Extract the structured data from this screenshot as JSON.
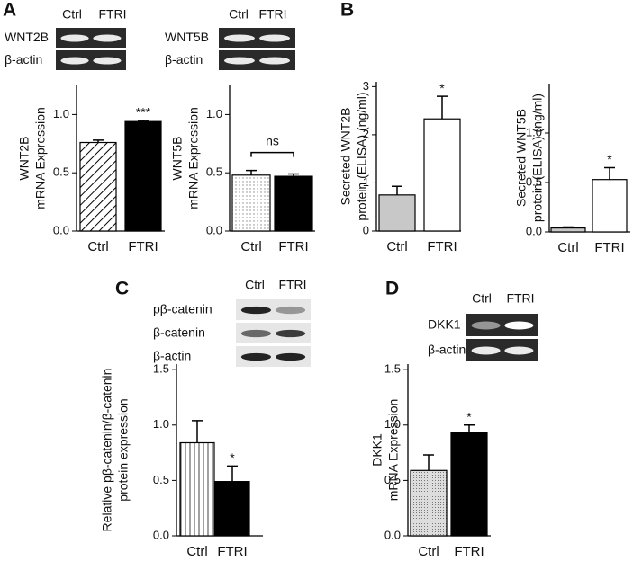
{
  "panels": [
    "A",
    "B",
    "C",
    "D"
  ],
  "blots": [
    {
      "columns": [
        "Ctrl",
        "FTRI"
      ],
      "rows": [
        "WNT2B",
        "β-actin"
      ]
    },
    {
      "columns": [
        "Ctrl",
        "FTRI"
      ],
      "rows": [
        "WNT5B",
        "β-actin"
      ]
    },
    {
      "columns": [
        "Ctrl",
        "FTRI"
      ],
      "rows": [
        "pβ-catenin",
        "β-catenin",
        "β-actin"
      ]
    },
    {
      "columns": [
        "Ctrl",
        "FTRI"
      ],
      "rows": [
        "DKK1",
        "β-actin"
      ]
    }
  ],
  "chart_data": [
    {
      "type": "bar",
      "ylabel": [
        "WNT2B",
        "mRNA Expression"
      ],
      "categories": [
        "Ctrl",
        "FTRI"
      ],
      "values": [
        0.76,
        0.94
      ],
      "errors": [
        0.02,
        0.01
      ],
      "fills": [
        "hatch",
        "#000000"
      ],
      "ylim": [
        0,
        1.25
      ],
      "yticks": [
        {
          "value": 0,
          "label": "0.0"
        },
        {
          "value": 0.5,
          "label": "0.5"
        },
        {
          "value": 1,
          "label": "1.0"
        }
      ],
      "annotations": [
        {
          "category": "FTRI",
          "text": "***"
        }
      ]
    },
    {
      "type": "bar",
      "ylabel": [
        "WNT5B",
        "mRNA Expression"
      ],
      "categories": [
        "Ctrl",
        "FTRI"
      ],
      "values": [
        0.48,
        0.47
      ],
      "errors": [
        0.04,
        0.02
      ],
      "fills": [
        "dots",
        "#000000"
      ],
      "ylim": [
        0,
        1.25
      ],
      "yticks": [
        {
          "value": 0,
          "label": "0.0"
        },
        {
          "value": 0.5,
          "label": "0.5"
        },
        {
          "value": 1,
          "label": "1.0"
        }
      ],
      "annotations": [
        {
          "bracket": [
            "Ctrl",
            "FTRI"
          ],
          "text": "ns"
        }
      ]
    },
    {
      "type": "bar",
      "ylabel": [
        "Secreted WNT2B",
        "protein (ELISA) (ng/ml)"
      ],
      "categories": [
        "Ctrl",
        "FTRI"
      ],
      "values": [
        0.75,
        2.33
      ],
      "errors": [
        0.18,
        0.47
      ],
      "fills": [
        "#c8c8c8",
        "#ffffff"
      ],
      "ylim": [
        0,
        3.1
      ],
      "yticks": [
        0,
        1,
        2,
        3
      ],
      "annotations": [
        {
          "category": "FTRI",
          "text": "*"
        }
      ]
    },
    {
      "type": "bar",
      "ylabel": [
        "Secreted WNT5B",
        "protein (ELISA) (ng/ml)"
      ],
      "categories": [
        "Ctrl",
        "FTRI"
      ],
      "values": [
        0.04,
        0.53
      ],
      "errors": [
        0.01,
        0.12
      ],
      "fills": [
        "#c8c8c8",
        "#ffffff"
      ],
      "ylim": [
        0,
        1.5
      ],
      "yticks": [
        {
          "value": 0,
          "label": "0.0"
        },
        {
          "value": 0.5,
          "label": "0.5"
        },
        {
          "value": 1,
          "label": "1.0"
        }
      ],
      "annotations": [
        {
          "category": "FTRI",
          "text": "*"
        }
      ]
    },
    {
      "type": "bar",
      "ylabel": [
        "Relative pβ-catenin/β-catenin",
        "protein expression"
      ],
      "categories": [
        "Ctrl",
        "FTRI"
      ],
      "values": [
        0.84,
        0.49
      ],
      "errors": [
        0.2,
        0.14
      ],
      "fills": [
        "vlines",
        "#000000"
      ],
      "ylim": [
        0,
        1.55
      ],
      "yticks": [
        {
          "value": 0,
          "label": "0.0"
        },
        {
          "value": 0.5,
          "label": "0.5"
        },
        {
          "value": 1,
          "label": "1.0"
        },
        {
          "value": 1.5,
          "label": "1.5"
        }
      ],
      "annotations": [
        {
          "category": "FTRI",
          "text": "*"
        }
      ]
    },
    {
      "type": "bar",
      "ylabel": [
        "DKK1",
        "mRNA Expression"
      ],
      "categories": [
        "Ctrl",
        "FTRI"
      ],
      "values": [
        0.59,
        0.93
      ],
      "errors": [
        0.14,
        0.07
      ],
      "fills": [
        "grid",
        "#000000"
      ],
      "ylim": [
        0,
        1.55
      ],
      "yticks": [
        {
          "value": 0,
          "label": "0.0"
        },
        {
          "value": 0.5,
          "label": "0.5"
        },
        {
          "value": 1,
          "label": "1.0"
        },
        {
          "value": 1.5,
          "label": "1.5"
        }
      ],
      "annotations": [
        {
          "category": "FTRI",
          "text": "*"
        }
      ]
    }
  ]
}
